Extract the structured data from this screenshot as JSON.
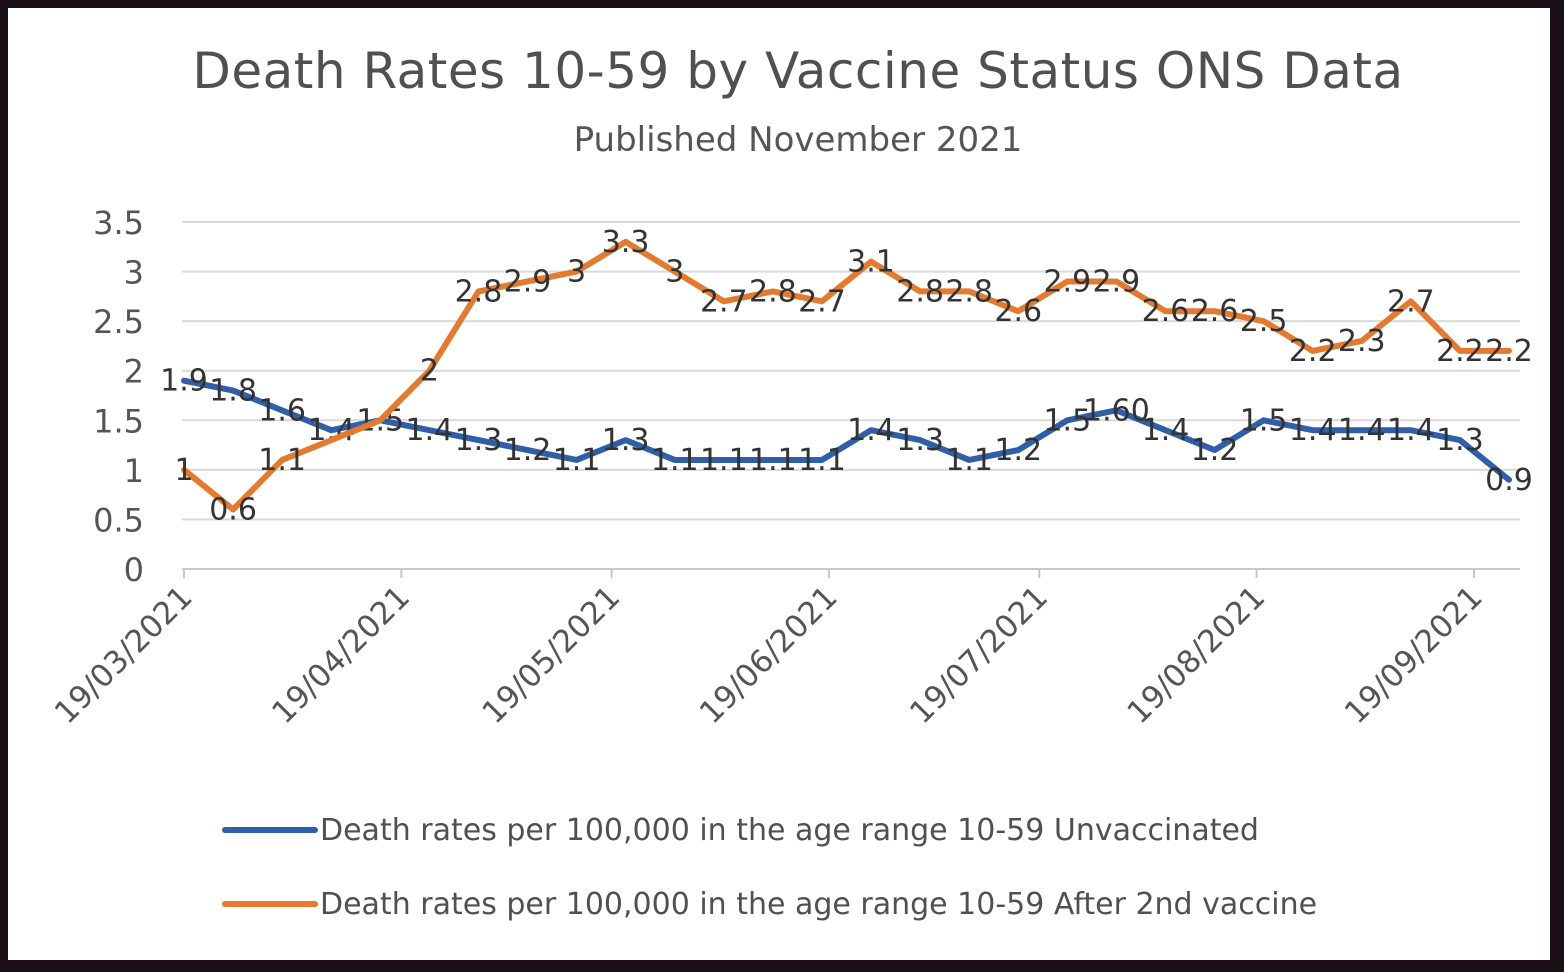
{
  "chart_data": {
    "type": "line",
    "title": "Death Rates 10-59  by Vaccine Status ONS Data",
    "subtitle": "Published November 2021",
    "xlabel": "",
    "ylabel": "",
    "ylim": [
      0,
      3.5
    ],
    "yticks": [
      "0",
      "0.5",
      "1",
      "1.5",
      "2",
      "2.5",
      "3",
      "3.5"
    ],
    "xtick_labels": [
      "19/03/2021",
      "19/04/2021",
      "19/05/2021",
      "19/06/2021",
      "19/07/2021",
      "19/08/2021",
      "19/09/2021"
    ],
    "x": [
      "19/03/2021",
      "26/03/2021",
      "02/04/2021",
      "09/04/2021",
      "16/04/2021",
      "23/04/2021",
      "30/04/2021",
      "07/05/2021",
      "14/05/2021",
      "21/05/2021",
      "28/05/2021",
      "04/06/2021",
      "11/06/2021",
      "18/06/2021",
      "25/06/2021",
      "02/07/2021",
      "09/07/2021",
      "16/07/2021",
      "23/07/2021",
      "30/07/2021",
      "06/08/2021",
      "13/08/2021",
      "20/08/2021",
      "27/08/2021",
      "03/09/2021",
      "10/09/2021",
      "17/09/2021",
      "24/09/2021"
    ],
    "grid": true,
    "legend_position": "bottom",
    "series": [
      {
        "name": "Death rates per 100,000 in the age range 10-59 Unvaccinated",
        "color": "#2e5fa8",
        "values": [
          1.9,
          1.8,
          1.6,
          1.4,
          1.5,
          1.4,
          1.3,
          1.2,
          1.1,
          1.3,
          1.1,
          1.1,
          1.1,
          1.1,
          1.4,
          1.3,
          1.1,
          1.2,
          1.5,
          1.6,
          1.4,
          1.2,
          1.5,
          1.4,
          1.4,
          1.4,
          1.3,
          0.9
        ],
        "labels": [
          "1.9",
          "1.8",
          "1.6",
          "1.4",
          "1.5",
          "1.4",
          "1.3",
          "1.2",
          "1.1",
          "1.3",
          "1.1",
          "1.1",
          "1.1",
          "1.1",
          "1.4",
          "1.3",
          "1.1",
          "1.2",
          "1.5",
          "1.60",
          "1.4",
          "1.2",
          "1.5",
          "1.4",
          "1.4",
          "1.4",
          "1.3",
          "0.9"
        ]
      },
      {
        "name": "Death rates per 100,000 in the age range 10-59 After 2nd  vaccine",
        "color": "#e37a2e",
        "values": [
          1.0,
          0.6,
          1.1,
          1.3,
          1.5,
          2.0,
          2.8,
          2.9,
          3.0,
          3.3,
          3.0,
          2.7,
          2.8,
          2.7,
          3.1,
          2.8,
          2.8,
          2.6,
          2.9,
          2.9,
          2.6,
          2.6,
          2.5,
          2.2,
          2.3,
          2.7,
          2.2,
          2.2
        ],
        "labels": [
          "1",
          "0.6",
          "1.1",
          "",
          "",
          "2",
          "2.8",
          "2.9",
          "3",
          "3.3",
          "3",
          "2.7",
          "2.8",
          "2.7",
          "3.1",
          "2.8",
          "2.8",
          "2.6",
          "2.9",
          "2.9",
          "2.6",
          "2.6",
          "2.5",
          "2.2",
          "2.3",
          "2.7",
          "2.2",
          "2.2"
        ]
      }
    ]
  }
}
